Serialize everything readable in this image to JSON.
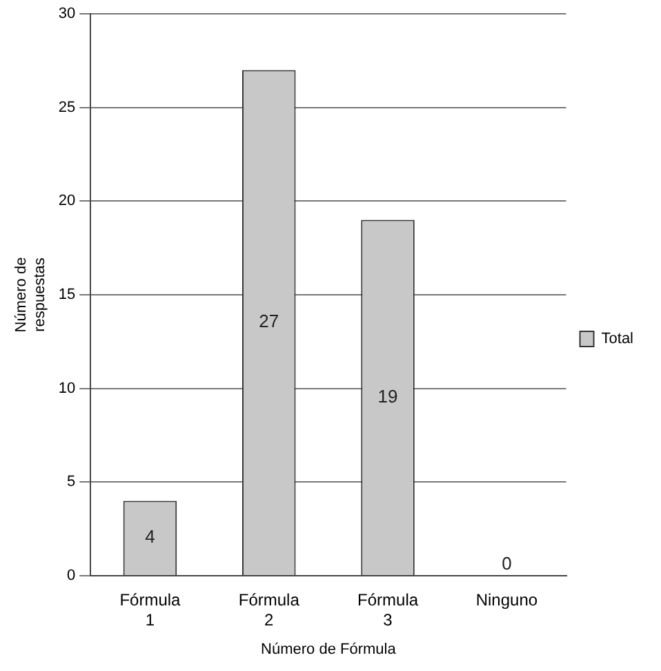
{
  "chart_data": {
    "type": "bar",
    "xlabel": "Número de Fórmula",
    "ylabel": "Número de respuestas",
    "categories": [
      "Fórmula 1",
      "Fórmula 2",
      "Fórmula 3",
      "Ninguno"
    ],
    "series": [
      {
        "name": "Total",
        "color": "#c8c8c8",
        "values": [
          4,
          27,
          19,
          0
        ]
      }
    ],
    "ylim": [
      0,
      30
    ],
    "yticks": [
      0,
      5,
      10,
      15,
      20,
      25,
      30
    ],
    "grid": "y",
    "legend": "right",
    "data_labels": true
  }
}
